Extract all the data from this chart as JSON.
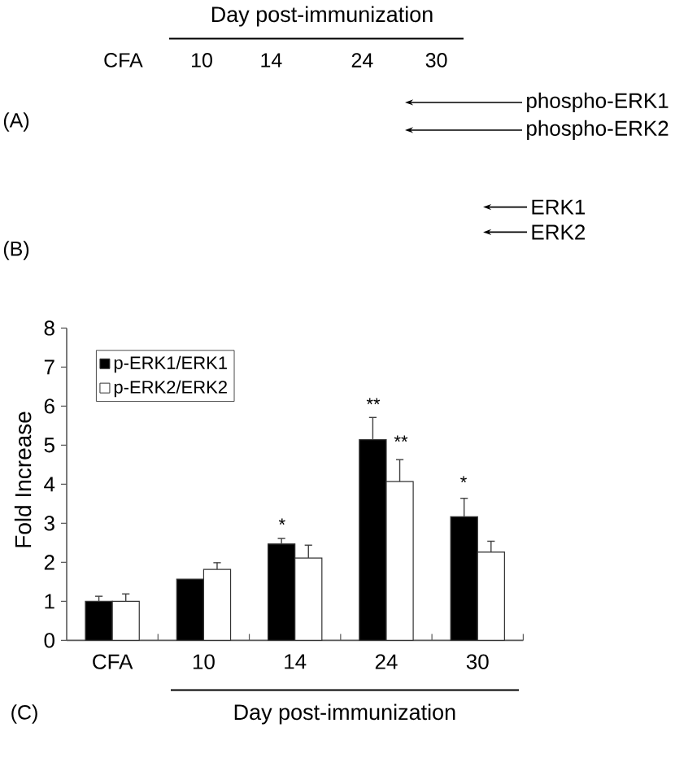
{
  "chart_data": {
    "type": "bar",
    "xlabel": "Day post-immunization",
    "ylabel": "Fold Increase",
    "categories": [
      "CFA",
      "10",
      "14",
      "24",
      "30"
    ],
    "series": [
      {
        "name": "p-ERK1/ERK1",
        "color": "#000000",
        "values": [
          1.0,
          1.57,
          2.47,
          5.14,
          3.17
        ],
        "errors": [
          [
            1.0,
            1.13
          ],
          null,
          [
            2.47,
            2.61
          ],
          [
            5.14,
            5.71
          ],
          [
            3.17,
            3.64
          ]
        ]
      },
      {
        "name": "p-ERK2/ERK2",
        "color": "#ffffff",
        "values": [
          1.0,
          1.82,
          2.11,
          4.07,
          2.26
        ],
        "errors": [
          [
            1.0,
            1.19
          ],
          [
            1.82,
            1.99
          ],
          [
            2.11,
            2.44
          ],
          [
            4.07,
            4.63
          ],
          [
            2.26,
            2.54
          ]
        ]
      }
    ],
    "ylim": [
      0,
      8
    ],
    "yticks": [
      0,
      1,
      2,
      3,
      4,
      5,
      6,
      7,
      8
    ],
    "legend": "top left",
    "annotations": [
      "Day post-immunization",
      "CFA",
      "10",
      "14",
      "24",
      "30",
      "(A)",
      "phospho-ERK1",
      "phospho-ERK2",
      "(B)",
      "ERK1",
      "ERK2",
      "(C)",
      "*",
      "**",
      "**",
      "*"
    ]
  }
}
